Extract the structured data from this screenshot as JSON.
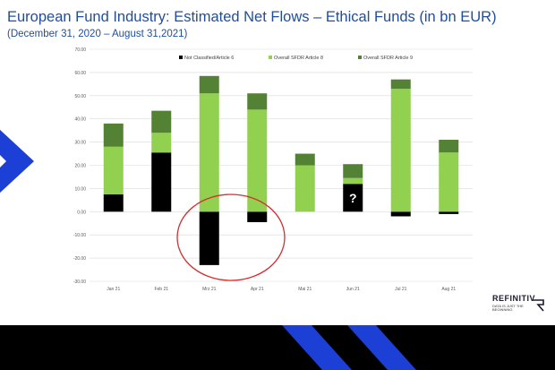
{
  "chart_data": {
    "type": "bar",
    "title": "European Fund Industry: Estimated Net Flows – Ethical Funds (in bn EUR)",
    "subtitle": "(December 31, 2020 – August 31,2021)",
    "categories": [
      "Jan 21",
      "Feb 21",
      "Mrz 21",
      "Apr 21",
      "Mai 21",
      "Jun 21",
      "Jul 21",
      "Aug 21"
    ],
    "stacked": true,
    "series": [
      {
        "name": "Not Classified/Article 6",
        "color": "#000000",
        "values": [
          7.5,
          25.5,
          -23.0,
          -4.5,
          0.0,
          12.0,
          -2.0,
          -1.0
        ]
      },
      {
        "name": "Overall SFDR Article 8",
        "color": "#92d050",
        "values": [
          20.5,
          8.5,
          51.0,
          44.0,
          20.0,
          2.5,
          53.0,
          25.5
        ]
      },
      {
        "name": "Overall SFDR Article 9",
        "color": "#548235",
        "values": [
          10.0,
          9.5,
          7.5,
          7.0,
          5.0,
          6.0,
          4.0,
          5.5
        ]
      }
    ],
    "ylim": [
      -30,
      70
    ],
    "yticks": [
      "70.00",
      "60.00",
      "50.00",
      "40.00",
      "30.00",
      "20.00",
      "10.00",
      "0.00",
      "-10.00",
      "-20.00",
      "-30.00"
    ],
    "grid": true,
    "legend_position": "top",
    "annotations": [
      {
        "text": "?",
        "category": "Jun 21"
      }
    ]
  },
  "brand": {
    "name": "REFINITIV",
    "tagline": "DATA IS JUST THE BEGINNING"
  }
}
